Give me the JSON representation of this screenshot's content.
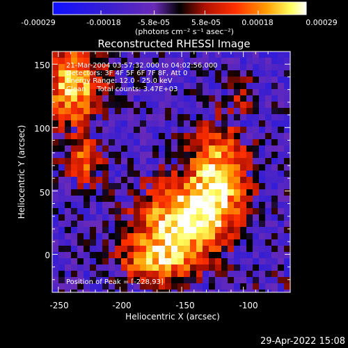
{
  "colorbar": {
    "ticks": [
      "-0.00029",
      "-0.00018",
      "-5.8e-05",
      "5.8e-05",
      "0.00018",
      "0.00029"
    ],
    "tick_values": [
      -0.00029,
      -0.00018,
      -5.8e-05,
      5.8e-05,
      0.00018,
      0.00029
    ],
    "range": [
      -0.00029,
      0.00029
    ],
    "units_label": "(photons cm⁻² s⁻¹ asec⁻²)",
    "colors": [
      "#1010ff",
      "#3a1fd0",
      "#6a2ab8",
      "#000000",
      "#b01000",
      "#ff3000",
      "#ff9a00",
      "#ffff60",
      "#ffffff"
    ]
  },
  "title": "Reconstructed RHESSI Image",
  "info": {
    "line1": "21-Mar-2004 03:57:32.000 to 04:02:56.000",
    "line2": "Detectors: 3F 4F 5F 6F 7F 8F, Att 0",
    "line3": "Energy Range: 12.0 - 25.0 keV",
    "line4": "Clean     Total counts: 3.47E+03"
  },
  "peak_label": "Position of Peak = [-228,93]",
  "x_axis": {
    "label": "Heliocentric X (arcsec)",
    "ticks": [
      "-250",
      "-200",
      "-150",
      "-100"
    ],
    "tick_values": [
      -250,
      -200,
      -150,
      -100
    ],
    "range": [
      -255,
      -62
    ]
  },
  "y_axis": {
    "label": "Heliocentric Y (arcsec)",
    "ticks": [
      "0",
      "50",
      "100",
      "150"
    ],
    "tick_values": [
      0,
      50,
      100,
      150
    ],
    "range": [
      -30,
      160
    ]
  },
  "timestamp": "29-Apr-2022 15:08"
}
